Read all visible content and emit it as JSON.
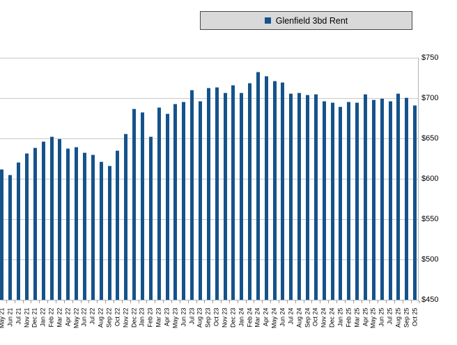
{
  "legend": {
    "label": "Glenfield 3bd Rent"
  },
  "colors": {
    "bar": "#15538b",
    "grid": "#c9c9c9",
    "axis": "#b3b3b3",
    "legend_bg": "#d9d9d9",
    "legend_border": "#474747"
  },
  "chart_data": {
    "type": "bar",
    "title": "Glenfield 3bd Rent",
    "series_name": "Glenfield 3bd Rent",
    "xlabel": "",
    "ylabel": "",
    "ylim": [
      450,
      750
    ],
    "yticks": [
      450,
      500,
      550,
      600,
      650,
      700,
      750
    ],
    "ytick_labels": [
      "$450",
      "$500",
      "$550",
      "$600",
      "$650",
      "$700",
      "$750"
    ],
    "y_axis_side": "right",
    "grid": true,
    "legend_position": "top",
    "categories": [
      "May 21",
      "Jun 21",
      "Jul 21",
      "Nov 21",
      "Dec 21",
      "Jan 22",
      "Feb 22",
      "Mar 22",
      "Apr 22",
      "May 22",
      "Jun 22",
      "Jul 22",
      "Aug 22",
      "Sep 22",
      "Oct 22",
      "Nov 22",
      "Dec 22",
      "Jan 23",
      "Feb 23",
      "Mar 23",
      "Apr 23",
      "May 23",
      "Jun 23",
      "Jul 23",
      "Aug 23",
      "Sep 23",
      "Oct 23",
      "Nov 23",
      "Dec 23",
      "Jan 24",
      "Feb 24",
      "Mar 24",
      "Apr 24",
      "May 24",
      "Jun 24",
      "Jul 24",
      "Aug 24",
      "Sep 24",
      "Oct 24",
      "Nov 24",
      "Dec 24",
      "Jan 25",
      "Feb 25",
      "Mar 25",
      "Apr 25",
      "May 25",
      "Jun 25",
      "Jul 25",
      "Aug 25",
      "Sep 25",
      "Oct 25"
    ],
    "values": [
      612,
      605,
      621,
      632,
      639,
      647,
      653,
      650,
      638,
      640,
      633,
      630,
      622,
      616,
      635,
      656,
      687,
      683,
      653,
      689,
      681,
      693,
      696,
      710,
      697,
      713,
      714,
      707,
      716,
      707,
      719,
      733,
      728,
      722,
      720,
      706,
      707,
      704,
      705,
      697,
      695,
      690,
      696,
      695,
      705,
      698,
      700,
      697,
      706,
      701,
      691
    ]
  }
}
